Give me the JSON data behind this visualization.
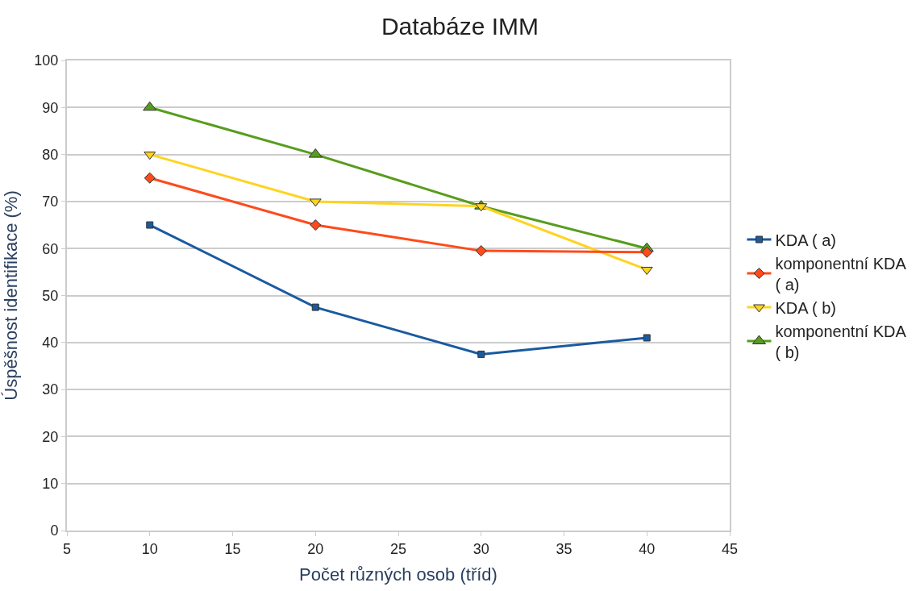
{
  "chart_data": {
    "type": "line",
    "title": "Databáze IMM",
    "xlabel": "Počet různých osob (tříd)",
    "ylabel": "Úspěšnost identifikace (%)",
    "x": [
      10,
      20,
      30,
      40
    ],
    "series": [
      {
        "name": "KDA ( a)",
        "color": "#1a5aa0",
        "marker": "square",
        "values": [
          65,
          47.5,
          37.5,
          41
        ]
      },
      {
        "name": "komponentní KDA ( a)",
        "color": "#ff4a1a",
        "marker": "diamond",
        "values": [
          75,
          65,
          59.5,
          59.2
        ]
      },
      {
        "name": "KDA ( b)",
        "color": "#ffd320",
        "marker": "triangle-down",
        "values": [
          80,
          70,
          69,
          55.5
        ]
      },
      {
        "name": "komponentní KDA ( b)",
        "color": "#579d1c",
        "marker": "triangle-up",
        "values": [
          90,
          80,
          69,
          60
        ]
      }
    ],
    "xlim": [
      5,
      45
    ],
    "xticks": [
      5,
      10,
      15,
      20,
      25,
      30,
      35,
      40,
      45
    ],
    "ylim": [
      0,
      100
    ],
    "yticks": [
      0,
      10,
      20,
      30,
      40,
      50,
      60,
      70,
      80,
      90,
      100
    ],
    "grid": "y",
    "legend": "right",
    "line_style": "solid"
  }
}
